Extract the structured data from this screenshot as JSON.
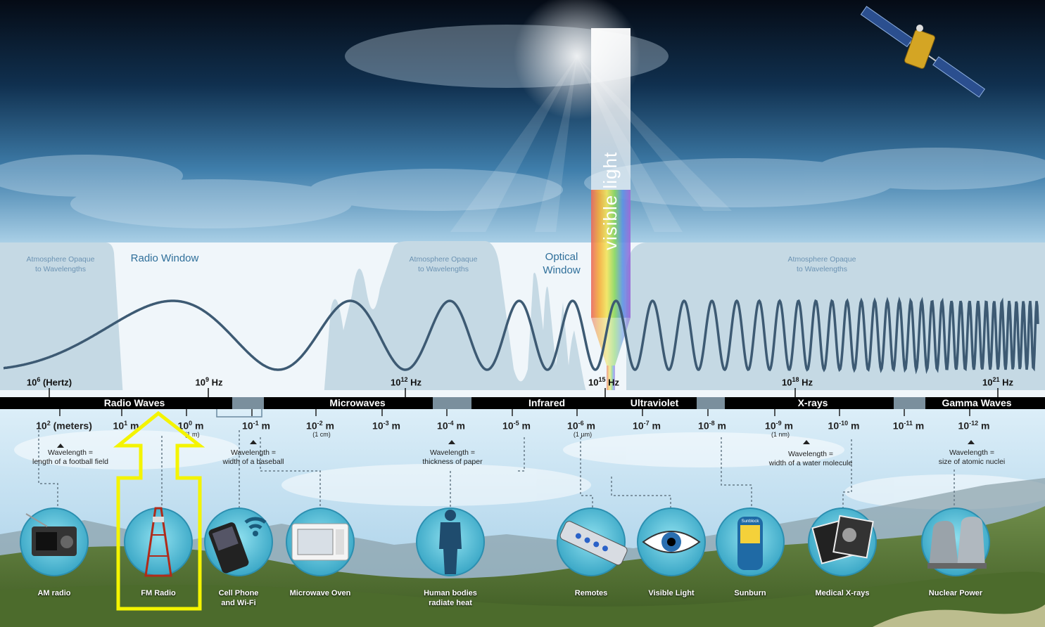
{
  "atmosphere": {
    "opaque_left": [
      "Atmosphere Opaque",
      "to Wavelengths"
    ],
    "opaque_mid": [
      "Atmosphere Opaque",
      "to Wavelengths"
    ],
    "opaque_right": [
      "Atmosphere Opaque",
      "to Wavelengths"
    ],
    "radio_window": "Radio Window",
    "optical_window": [
      "Optical",
      "Window"
    ]
  },
  "visible_light_label": "visible light",
  "frequencies": [
    {
      "base": "10",
      "exp": "6",
      "unit": "(Hertz)"
    },
    {
      "base": "10",
      "exp": "9",
      "unit": "Hz"
    },
    {
      "base": "10",
      "exp": "12",
      "unit": "Hz"
    },
    {
      "base": "10",
      "exp": "15",
      "unit": "Hz"
    },
    {
      "base": "10",
      "exp": "18",
      "unit": "Hz"
    },
    {
      "base": "10",
      "exp": "21",
      "unit": "Hz"
    }
  ],
  "bands": [
    "Radio Waves",
    "Microwaves",
    "Infrared",
    "Ultraviolet",
    "X-rays",
    "Gamma Waves"
  ],
  "wavelengths": [
    {
      "base": "10",
      "exp": "2",
      "unit": "(meters)",
      "sub": ""
    },
    {
      "base": "10",
      "exp": "1",
      "unit": "m",
      "sub": ""
    },
    {
      "base": "10",
      "exp": "0",
      "unit": "m",
      "sub": "(1 m)"
    },
    {
      "base": "10",
      "exp": "-1",
      "unit": "m",
      "sub": ""
    },
    {
      "base": "10",
      "exp": "-2",
      "unit": "m",
      "sub": "(1 cm)"
    },
    {
      "base": "10",
      "exp": "-3",
      "unit": "m",
      "sub": ""
    },
    {
      "base": "10",
      "exp": "-4",
      "unit": "m",
      "sub": ""
    },
    {
      "base": "10",
      "exp": "-5",
      "unit": "m",
      "sub": ""
    },
    {
      "base": "10",
      "exp": "-6",
      "unit": "m",
      "sub": "(1 µm)"
    },
    {
      "base": "10",
      "exp": "-7",
      "unit": "m",
      "sub": ""
    },
    {
      "base": "10",
      "exp": "-8",
      "unit": "m",
      "sub": ""
    },
    {
      "base": "10",
      "exp": "-9",
      "unit": "m",
      "sub": "(1 nm)"
    },
    {
      "base": "10",
      "exp": "-10",
      "unit": "m",
      "sub": ""
    },
    {
      "base": "10",
      "exp": "-11",
      "unit": "m",
      "sub": ""
    },
    {
      "base": "10",
      "exp": "-12",
      "unit": "m",
      "sub": ""
    }
  ],
  "comparisons": [
    [
      "Wavelength =",
      "length of a football field"
    ],
    [
      "Wavelength =",
      "width of a baseball"
    ],
    [
      "Wavelength =",
      "thickness of paper"
    ],
    [
      "Wavelength =",
      "width of a water molecule"
    ],
    [
      "Wavelength =",
      "size of atomic nuclei"
    ]
  ],
  "icons": [
    {
      "label": [
        "AM radio"
      ],
      "icon": "am-radio-icon"
    },
    {
      "label": [
        "FM Radio"
      ],
      "icon": "fm-tower-icon"
    },
    {
      "label": [
        "Cell Phone",
        "and Wi-Fi"
      ],
      "icon": "cell-phone-icon"
    },
    {
      "label": [
        "Microwave Oven"
      ],
      "icon": "microwave-oven-icon"
    },
    {
      "label": [
        "Human bodies",
        "radiate heat"
      ],
      "icon": "human-body-icon"
    },
    {
      "label": [
        "Remotes"
      ],
      "icon": "remote-control-icon"
    },
    {
      "label": [
        "Visible Light"
      ],
      "icon": "eye-icon"
    },
    {
      "label": [
        "Sunburn"
      ],
      "icon": "sunblock-icon"
    },
    {
      "label": [
        "Medical X-rays"
      ],
      "icon": "xray-film-icon"
    },
    {
      "label": [
        "Nuclear Power"
      ],
      "icon": "cooling-tower-icon"
    }
  ],
  "sunblock_text": "Sunblock",
  "highlight": {
    "target": "FM Radio",
    "color": "#f4f400"
  },
  "colors": {
    "sky_top": "#0b1a2c",
    "sky_mid": "#2f6e9c",
    "wave": "#3d5a73",
    "band_bar": "#000000",
    "icon_circle": "#5cc4dc"
  }
}
